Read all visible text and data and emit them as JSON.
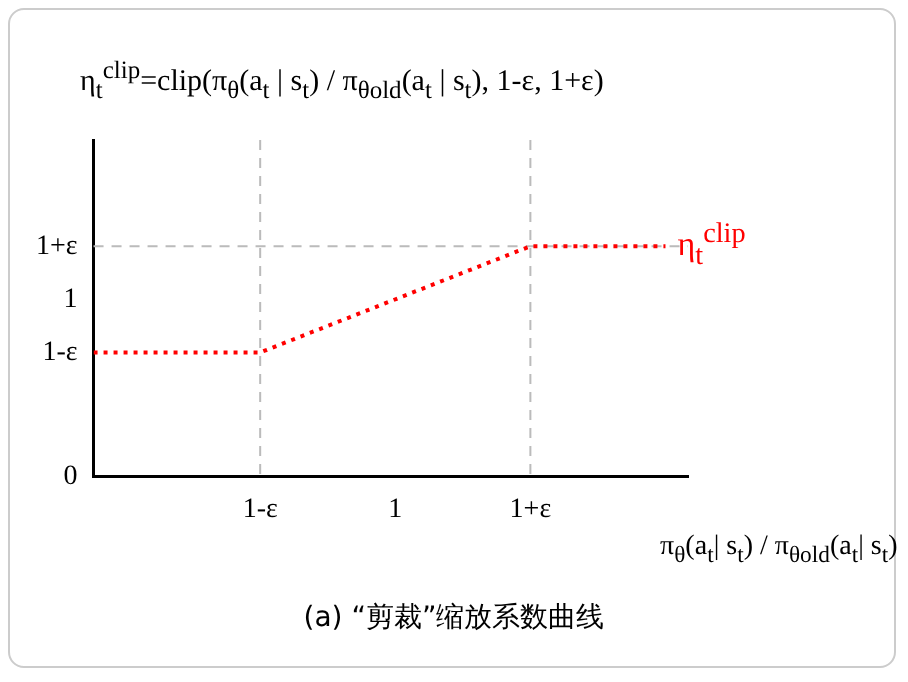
{
  "chart_data": {
    "type": "line",
    "title": "η$_{t}$$^{clip}$=clip(π$_{θ}$(a$_{t}$ | s$_{t}$) / π$_{θold}$(a$_{t}$ | s$_{t}$), 1-ε, 1+ε)",
    "xlabel": "π$_{θ}$(a$_{t}$| s$_{t}$) / π$_{θold}$(a$_{t}$| s$_{t}$)",
    "annotations": [
      "(a) “剪裁”缩放系数曲线"
    ],
    "series": [
      {
        "name": "η$_{t}$$^{clip}$",
        "color": "#ff0000",
        "x": [
          0.33,
          0.7,
          1.3,
          1.6
        ],
        "values": [
          0.7,
          0.7,
          1.3,
          1.3
        ]
      }
    ],
    "xlim": [
      0.33,
      1.65
    ],
    "xticks": [
      {
        "value": 0.7,
        "label": "1-ε"
      },
      1,
      {
        "value": 1.3,
        "label": "1+ε"
      }
    ],
    "ylim": [
      0,
      1.9
    ],
    "yticks": [
      0,
      {
        "value": 0.7,
        "label": "1-ε"
      },
      1,
      {
        "value": 1.3,
        "label": "1+ε"
      }
    ],
    "ref_lines": [
      {
        "axis": "x",
        "value": 0.7,
        "color": "#bbbbbb",
        "line_style": "dashed"
      },
      {
        "axis": "x",
        "value": 1.3,
        "color": "#bbbbbb",
        "line_style": "dashed"
      },
      {
        "axis": "y",
        "value": 1.3,
        "color": "#bbbbbb",
        "line_style": "dashed"
      }
    ],
    "grid": false,
    "legend": false,
    "marker": "none",
    "line_style": "dotted"
  }
}
